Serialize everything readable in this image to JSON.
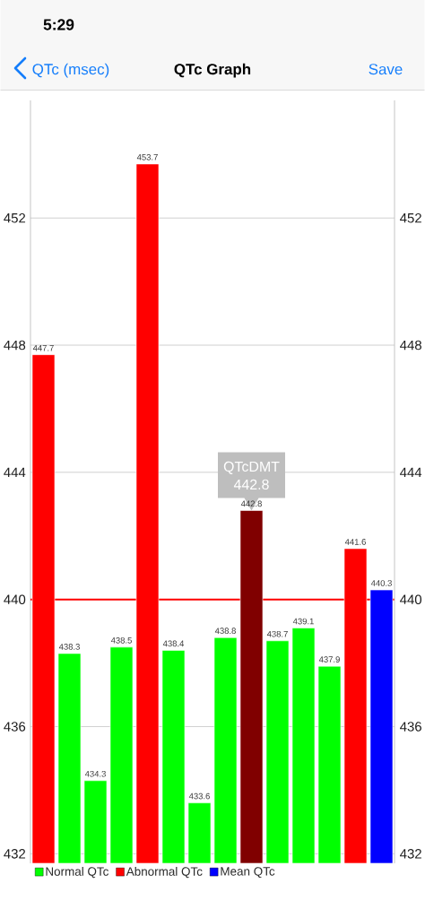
{
  "chart_data": {
    "type": "bar",
    "title": "QTc Graph",
    "categories": [
      null,
      null,
      null,
      null,
      null,
      null,
      null,
      null,
      null,
      null,
      null,
      null,
      null,
      null
    ],
    "series": [
      {
        "name": "Normal QTc",
        "color": "#00ff00",
        "values": [
          null,
          438.3,
          434.3,
          438.5,
          null,
          438.4,
          433.6,
          438.8,
          null,
          438.7,
          439.1,
          437.9,
          null,
          null
        ]
      },
      {
        "name": "Abnormal QTc",
        "color": "#ff0000",
        "colors": [
          "#ff0000",
          "#ff0000",
          "#ff0000",
          "#ff0000",
          "#ff0000",
          "#ff0000",
          "#ff0000",
          "#ff0000",
          "#800000",
          "#ff0000",
          "#ff0000",
          "#ff0000",
          "#ff0000",
          "#ff0000"
        ],
        "values": [
          447.7,
          null,
          null,
          null,
          453.7,
          null,
          null,
          null,
          442.8,
          null,
          null,
          null,
          441.6,
          null
        ]
      },
      {
        "name": "Mean QTc",
        "color": "#0000ff",
        "values": [
          null,
          null,
          null,
          null,
          null,
          null,
          null,
          null,
          null,
          null,
          null,
          null,
          null,
          440.3
        ]
      }
    ],
    "ylim": [
      431.7,
      455.7
    ],
    "yticks": [
      432,
      436,
      440,
      444,
      448,
      452
    ],
    "y2lim": [
      431.7,
      455.7
    ],
    "y2ticks": [
      432,
      436,
      440,
      444,
      448,
      452
    ],
    "grid": "y",
    "legend": "bottom left",
    "tick_labels": "y",
    "data_labels": true,
    "ref_lines": [
      {
        "axis": "y",
        "value": 440,
        "color": "#ff0000"
      }
    ],
    "annotations": [
      "5:29",
      "QTc (msec)",
      "Save",
      {
        "text": "QTcDMT",
        "y": 442.8
      },
      {
        "text": "442.8",
        "y": 442.8
      }
    ]
  }
}
